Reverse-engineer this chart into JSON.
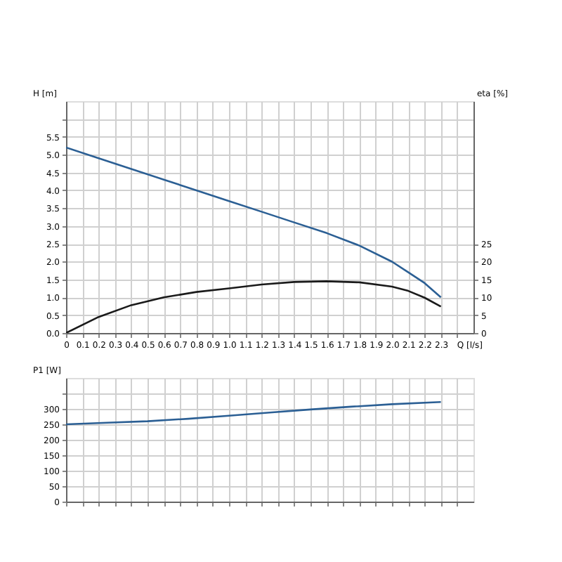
{
  "chart_data": [
    {
      "type": "line",
      "xlabel": "Q [l/s]",
      "ylabel": "H [m]",
      "y2label": "eta [%]",
      "xlim": [
        0,
        2.5
      ],
      "xticks": [
        {
          "value": 0,
          "label": "0"
        },
        0.1,
        0.2,
        0.3,
        0.4,
        0.5,
        0.6,
        0.7,
        0.8,
        0.9,
        {
          "value": 1.0,
          "label": "1.0"
        },
        1.1,
        1.2,
        1.3,
        1.4,
        1.5,
        1.6,
        1.7,
        1.8,
        1.9,
        {
          "value": 2.0,
          "label": "2.0"
        },
        2.1,
        2.2,
        2.3,
        {
          "value": 2.4,
          "label": null
        }
      ],
      "ylim": [
        0,
        6.5
      ],
      "yticks": [
        {
          "value": 0,
          "label": "0.0"
        },
        0.5,
        {
          "value": 1,
          "label": "1.0"
        },
        1.5,
        {
          "value": 2,
          "label": "2.0"
        },
        2.5,
        {
          "value": 3,
          "label": "3.0"
        },
        3.5,
        {
          "value": 4,
          "label": "4.0"
        },
        4.5,
        {
          "value": 5,
          "label": "5.0"
        },
        5.5,
        {
          "value": 6,
          "label": null
        }
      ],
      "y2lim": [
        0,
        65
      ],
      "y2ticks": [
        0,
        5,
        10,
        15,
        20,
        25
      ],
      "grid": true,
      "line_style": "solid",
      "series": [
        {
          "color": "#2b5f94",
          "x": [
            0,
            0.2,
            0.4,
            0.6,
            0.8,
            1.0,
            1.2,
            1.4,
            1.6,
            1.8,
            2.0,
            2.1,
            2.2,
            2.3
          ],
          "values": [
            5.2,
            4.9,
            4.6,
            4.3,
            4.0,
            3.7,
            3.4,
            3.1,
            2.8,
            2.45,
            2.0,
            1.7,
            1.4,
            1.0
          ]
        },
        {
          "color": "#1a1a1a",
          "axis": "y2",
          "x": [
            0,
            0.2,
            0.4,
            0.6,
            0.8,
            1.0,
            1.2,
            1.4,
            1.6,
            1.8,
            2.0,
            2.1,
            2.2,
            2.3
          ],
          "values": [
            0,
            4.5,
            7.8,
            10.0,
            11.5,
            12.5,
            13.6,
            14.3,
            14.5,
            14.2,
            13.0,
            11.8,
            9.9,
            7.4
          ]
        }
      ]
    },
    {
      "type": "line",
      "ylabel": "P1 [W]",
      "xlim": [
        0,
        2.5
      ],
      "xticks": [
        0,
        0.1,
        0.2,
        0.3,
        0.4,
        0.5,
        0.6,
        0.7,
        0.8,
        0.9,
        1.0,
        1.1,
        1.2,
        1.3,
        1.4,
        1.5,
        1.6,
        1.7,
        1.8,
        1.9,
        2.0,
        2.1,
        2.2,
        2.3,
        2.4
      ],
      "ylim": [
        0,
        400
      ],
      "yticks": [
        0,
        50,
        100,
        150,
        200,
        250,
        300,
        {
          "value": 350,
          "label": null
        }
      ],
      "tick_labels": "y",
      "grid": true,
      "line_style": "solid",
      "series": [
        {
          "color": "#2b5f94",
          "x": [
            0,
            0.25,
            0.5,
            0.75,
            1.0,
            1.25,
            1.5,
            1.75,
            2.0,
            2.3
          ],
          "values": [
            250,
            255,
            260,
            268,
            278,
            288,
            298,
            307,
            315,
            322
          ]
        }
      ]
    }
  ]
}
